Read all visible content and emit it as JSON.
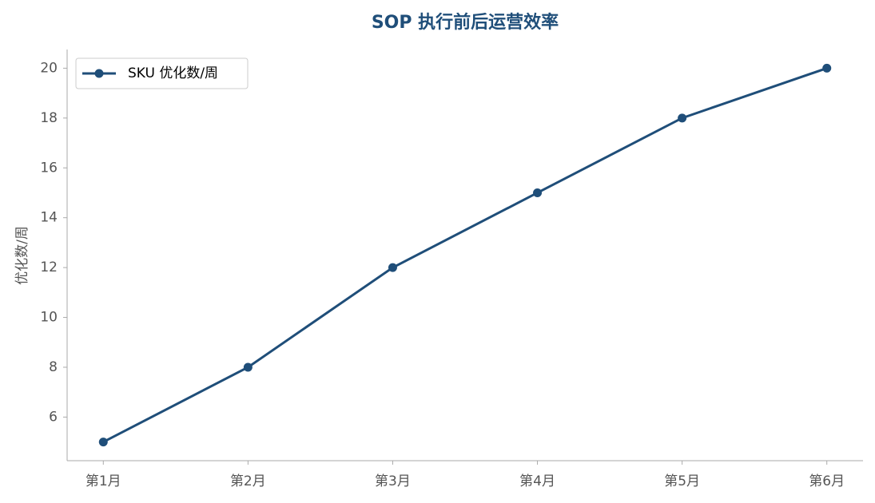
{
  "chart_data": {
    "type": "line",
    "title": "SOP 执行前后运营效率",
    "ylabel": "优化数/周",
    "categories": [
      "第1月",
      "第2月",
      "第3月",
      "第4月",
      "第5月",
      "第6月"
    ],
    "series": [
      {
        "name": "SKU 优化数/周",
        "color": "#1f4e79",
        "values": [
          5,
          8,
          12,
          15,
          18,
          20
        ]
      }
    ],
    "ylim": [
      4.25,
      20.75
    ],
    "yticks": [
      6,
      8,
      10,
      12,
      14,
      16,
      18,
      20
    ],
    "grid": false,
    "legend": "upper left"
  }
}
